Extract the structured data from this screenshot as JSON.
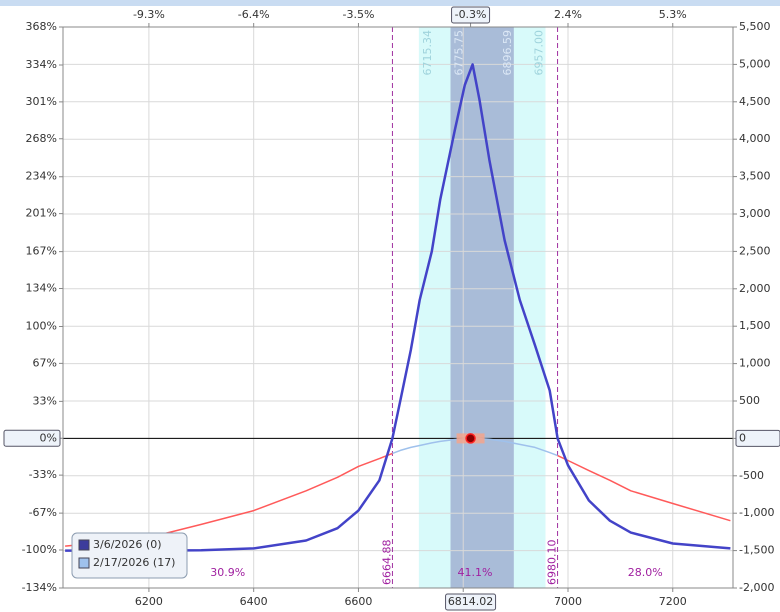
{
  "chart_data": {
    "type": "line",
    "xlim": [
      6036,
      7315
    ],
    "ylim": [
      -2000,
      5500
    ],
    "y2lim": [
      -134,
      368
    ],
    "xticks": [
      6200,
      6400,
      6600,
      6800,
      7000,
      7200
    ],
    "x2ticks": [
      {
        "value": 6200,
        "label": "-9.3%"
      },
      {
        "value": 6400,
        "label": "-6.4%"
      },
      {
        "value": 6600,
        "label": "-3.5%"
      },
      {
        "value": 6814.02,
        "label": "-0.3%"
      },
      {
        "value": 7000,
        "label": "2.4%"
      },
      {
        "value": 7200,
        "label": "5.3%"
      }
    ],
    "yticks": [
      {
        "value": 5500,
        "label": "5,500"
      },
      {
        "value": 5000,
        "label": "5,000"
      },
      {
        "value": 4500,
        "label": "4,500"
      },
      {
        "value": 4000,
        "label": "4,000"
      },
      {
        "value": 3500,
        "label": "3,500"
      },
      {
        "value": 3000,
        "label": "3,000"
      },
      {
        "value": 2500,
        "label": "2,500"
      },
      {
        "value": 2000,
        "label": "2,000"
      },
      {
        "value": 1500,
        "label": "1,500"
      },
      {
        "value": 1000,
        "label": "1,000"
      },
      500,
      0,
      -500,
      {
        "value": -1000,
        "label": "-1,000"
      },
      {
        "value": -1500,
        "label": "-1,500"
      },
      {
        "value": -2000,
        "label": "-2,000"
      }
    ],
    "y2ticks": [
      {
        "value": 368,
        "label": "368%"
      },
      {
        "value": 334,
        "label": "334%"
      },
      {
        "value": 301,
        "label": "301%"
      },
      {
        "value": 268,
        "label": "268%"
      },
      {
        "value": 234,
        "label": "234%"
      },
      {
        "value": 201,
        "label": "201%"
      },
      {
        "value": 167,
        "label": "167%"
      },
      {
        "value": 134,
        "label": "134%"
      },
      {
        "value": 100,
        "label": "100%"
      },
      {
        "value": 67,
        "label": "67%"
      },
      {
        "value": 33,
        "label": "33%"
      },
      {
        "value": 0,
        "label": "0%"
      },
      {
        "value": -33,
        "label": "-33%"
      },
      {
        "value": -67,
        "label": "-67%"
      },
      {
        "value": -100,
        "label": "-100%"
      },
      {
        "value": -134,
        "label": "-134%"
      }
    ],
    "grid": true,
    "legend": "lower left",
    "current_price": 6814.02,
    "bands": [
      {
        "low": 6715.34,
        "high": {
          "value": 6957,
          "label": "6957.00"
        },
        "color": "#d8fafa"
      },
      {
        "low": 6775.75,
        "high": 6896.59,
        "color": "#a9bcd8"
      }
    ],
    "breakevens": [
      6664.88,
      {
        "value": 6980.1,
        "label": "6980.10"
      }
    ],
    "probabilities": [
      30.9,
      41.1,
      28.0
    ],
    "probability_labels": [
      "30.9%",
      "41.1%",
      "28.0%"
    ],
    "x": [
      6040,
      6100,
      6200,
      6300,
      6400,
      6500,
      6560,
      6600,
      6640,
      6664.88,
      6680,
      6700,
      6717,
      6740,
      6756,
      6784,
      6803,
      6818,
      6831,
      6850,
      6879,
      6908,
      6937,
      6965,
      6980.1,
      7000,
      7040,
      7080,
      7120,
      7200,
      7310
    ],
    "series": [
      {
        "name": "3/6/2026 (0)",
        "color": "#4343c8",
        "values": [
          -1500,
          -1500,
          -1500,
          -1495,
          -1470,
          -1365,
          -1200,
          -965,
          -560,
          0,
          510,
          1180,
          1850,
          2500,
          3190,
          4120,
          4725,
          5000,
          4525,
          3720,
          2650,
          1850,
          1245,
          640,
          0,
          -360,
          -830,
          -1100,
          -1260,
          -1405,
          -1470
        ]
      },
      {
        "name": "2/17/2026 (17)",
        "color": "#9fc1ec",
        "above_color": "#ff5a5a",
        "values": [
          -1440,
          -1400,
          -1325,
          -1150,
          -965,
          -700,
          -520,
          -375,
          -270,
          -200,
          -160,
          -120,
          -95,
          -60,
          -40,
          -15,
          -3,
          0,
          -3,
          -12,
          -40,
          -80,
          -120,
          -190,
          -230,
          -295,
          -430,
          -560,
          -700,
          -870,
          -1100
        ]
      }
    ]
  }
}
